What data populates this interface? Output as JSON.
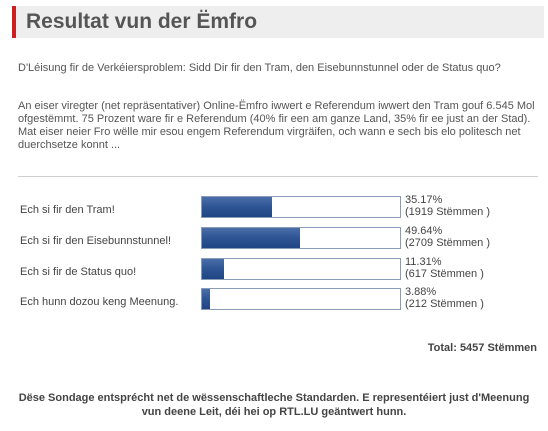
{
  "header": {
    "title": "Resultat vun der Ëmfro"
  },
  "question": "D'Léisung fir de Verkéiersproblem: Sidd Dir fir den Tram, den Eisebunnstunnel oder de Status quo?",
  "description": "An eiser viregter (net repräsentativer) Online-Ëmfro iwwert e Referendum iwwert den Tram gouf 6.545 Mol ofgestëmmt. 75 Prozent ware fir e Referendum (40% fir een am ganze Land, 35% fir ee just an der Stad). Mat eiser neier Fro wëlle mir esou engem Referendum virgräifen, och wann e sech bis elo politesch net duerchsetze konnt ...",
  "options": [
    {
      "label": "Ech si fir den Tram!",
      "percent_text": "35.17%",
      "percent": 35.17,
      "votes_text": "(1919 Stëmmen )"
    },
    {
      "label": "Ech si fir den Eisebunnstunnel!",
      "percent_text": "49.64%",
      "percent": 49.64,
      "votes_text": "(2709 Stëmmen )"
    },
    {
      "label": "Ech si fir de Status quo!",
      "percent_text": "11.31%",
      "percent": 11.31,
      "votes_text": "(617 Stëmmen )"
    },
    {
      "label": "Ech hunn dozou keng Meenung.",
      "percent_text": "3.88%",
      "percent": 3.88,
      "votes_text": "(212 Stëmmen )"
    }
  ],
  "total_text": "Total: 5457 Stëmmen",
  "disclaimer": "Dëse Sondage entsprécht net de wëssenschaftleche Standarden. E representéiert just d'Meenung vun deene Leit, déi hei op RTL.LU geäntwert hunn.",
  "colors": {
    "accent": "#cc1f1f",
    "bar_fill": "#2e5494",
    "header_bg": "#eeeeee"
  }
}
